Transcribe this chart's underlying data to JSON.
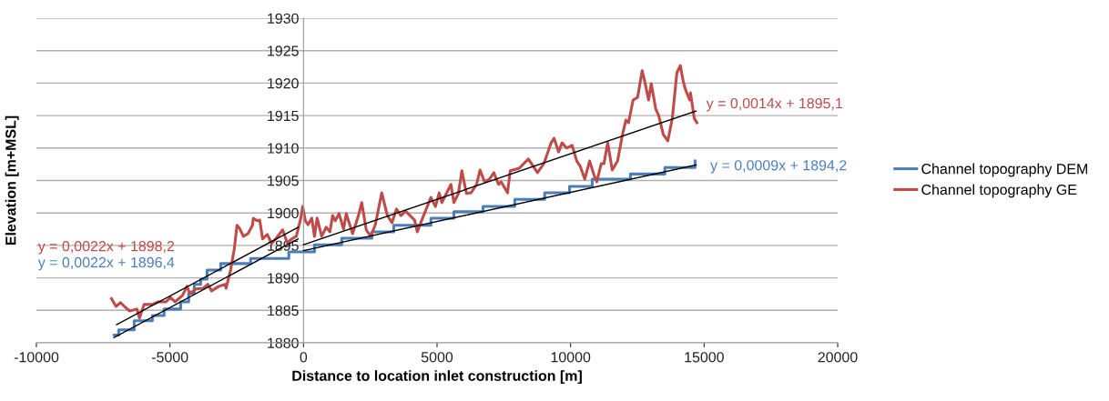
{
  "chart_data": {
    "type": "line",
    "xlabel": "Distance to location inlet construction [m]",
    "ylabel": "Elevation [m+MSL]",
    "xlim": [
      -10000,
      20000
    ],
    "xticks": [
      -10000,
      -5000,
      0,
      5000,
      10000,
      15000,
      20000
    ],
    "ylim": [
      1880,
      1930
    ],
    "yticks": [
      1880,
      1885,
      1890,
      1895,
      1900,
      1905,
      1910,
      1915,
      1920,
      1925,
      1930
    ],
    "grid": "y",
    "legend": "right",
    "series": [
      {
        "name": "Channel topography DEM",
        "type": "step",
        "color": "#4a7ebb",
        "x": [
          -7090,
          -6920,
          -6340,
          -5660,
          -5220,
          -4600,
          -4300,
          -4090,
          -3850,
          -3610,
          -3100,
          -1980,
          -550,
          410,
          1430,
          2560,
          3380,
          4770,
          5630,
          6720,
          7910,
          9030,
          9960,
          10810,
          12240,
          13530,
          14660
        ],
        "values": [
          1881.2,
          1882,
          1883.4,
          1884.2,
          1885.2,
          1886.3,
          1887.6,
          1889,
          1889.8,
          1891.2,
          1892.2,
          1893,
          1894,
          1895.1,
          1896.1,
          1897.1,
          1898.1,
          1899.2,
          1900.2,
          1901,
          1902.1,
          1903.1,
          1904.1,
          1905.2,
          1906,
          1907,
          1908
        ]
      },
      {
        "name": "Channel topography GE",
        "color": "#be4b48",
        "x": [
          -7190,
          -7020,
          -6850,
          -6680,
          -6510,
          -6240,
          -6140,
          -5970,
          -5660,
          -5460,
          -5150,
          -4980,
          -4810,
          -4530,
          -4360,
          -4260,
          -4020,
          -3750,
          -3580,
          -3440,
          -3170,
          -2930,
          -2900,
          -2730,
          -2590,
          -2490,
          -2390,
          -2250,
          -2080,
          -1910,
          -1880,
          -1740,
          -1640,
          -1530,
          -1360,
          -1190,
          -1020,
          -780,
          -610,
          -440,
          -270,
          -100,
          -30,
          70,
          170,
          310,
          410,
          510,
          680,
          850,
          990,
          1090,
          1190,
          1330,
          1500,
          1600,
          1840,
          2050,
          2180,
          2350,
          2520,
          2690,
          2930,
          3140,
          3310,
          3480,
          3650,
          3820,
          4160,
          4260,
          4430,
          4770,
          4940,
          5080,
          5180,
          5350,
          5520,
          5630,
          5800,
          5930,
          6100,
          6270,
          6480,
          6610,
          6780,
          6960,
          7130,
          7300,
          7400,
          7640,
          7740,
          8080,
          8420,
          8760,
          9000,
          9270,
          9380,
          9550,
          9680,
          9850,
          10060,
          10230,
          10360,
          10530,
          10710,
          10880,
          10980,
          11150,
          11250,
          11390,
          11560,
          11760,
          11930,
          12070,
          12170,
          12340,
          12510,
          12680,
          12780,
          12920,
          13020,
          13190,
          13300,
          13470,
          13640,
          13810,
          13980,
          14110,
          14220,
          14320,
          14460,
          14490,
          14630,
          14730
        ],
        "values": [
          1886.8,
          1885.6,
          1886.2,
          1885.5,
          1884.9,
          1885.2,
          1883.8,
          1885.9,
          1885.9,
          1886.3,
          1886.3,
          1887,
          1886.3,
          1887.3,
          1888.7,
          1887.6,
          1888.3,
          1888.4,
          1889,
          1888,
          1888.7,
          1889,
          1888.4,
          1891.2,
          1894.5,
          1898.1,
          1897.6,
          1896.4,
          1896.8,
          1898.1,
          1899.2,
          1898.8,
          1898.9,
          1896,
          1896.7,
          1895.3,
          1896.1,
          1897.4,
          1895.4,
          1896,
          1896.4,
          1899.2,
          1901,
          1898.8,
          1898.2,
          1899.2,
          1896.4,
          1899.2,
          1896.4,
          1897.8,
          1897.1,
          1899.6,
          1898.8,
          1899.9,
          1897.5,
          1899.9,
          1896.8,
          1899.5,
          1901.6,
          1897.4,
          1896.4,
          1898.2,
          1903.1,
          1899.6,
          1898.5,
          1900.6,
          1899.6,
          1900.3,
          1898.9,
          1897.1,
          1898.9,
          1902.4,
          1901,
          1903.1,
          1901.6,
          1903,
          1904.4,
          1901.6,
          1903,
          1906.5,
          1903,
          1903.1,
          1904.4,
          1906.6,
          1904.8,
          1905.2,
          1906.2,
          1904.4,
          1904.8,
          1903.1,
          1906.5,
          1906.9,
          1908.3,
          1906.2,
          1907.6,
          1910.8,
          1911.5,
          1909.4,
          1910.8,
          1910,
          1910.4,
          1908,
          1907.2,
          1905.2,
          1908,
          1905.8,
          1904.8,
          1907.6,
          1907.6,
          1910.8,
          1906.6,
          1908,
          1911.8,
          1914.3,
          1913.9,
          1917.4,
          1917.8,
          1921.9,
          1920.2,
          1917.4,
          1919.9,
          1916,
          1915,
          1912.1,
          1911.1,
          1914.6,
          1921.6,
          1922.7,
          1920.2,
          1918.8,
          1917.4,
          1918.5,
          1914.6,
          1913.9
        ]
      },
      {
        "color": "#000000",
        "x": [
          -7000,
          -200
        ],
        "values": [
          1882.8,
          1897.8
        ]
      },
      {
        "color": "#000000",
        "x": [
          -7100,
          -200
        ],
        "values": [
          1880.8,
          1896.0
        ]
      },
      {
        "color": "#000000",
        "x": [
          0,
          14700
        ],
        "values": [
          1895.1,
          1915.7
        ]
      },
      {
        "color": "#000000",
        "x": [
          0,
          14700
        ],
        "values": [
          1894.2,
          1907.4
        ]
      }
    ],
    "annotations": [
      "y = 0,0022x + 1898,2",
      "y = 0,0022x + 1896,4",
      "y = 0,0014x + 1895,1",
      "y = 0,0009x + 1894,2"
    ]
  }
}
